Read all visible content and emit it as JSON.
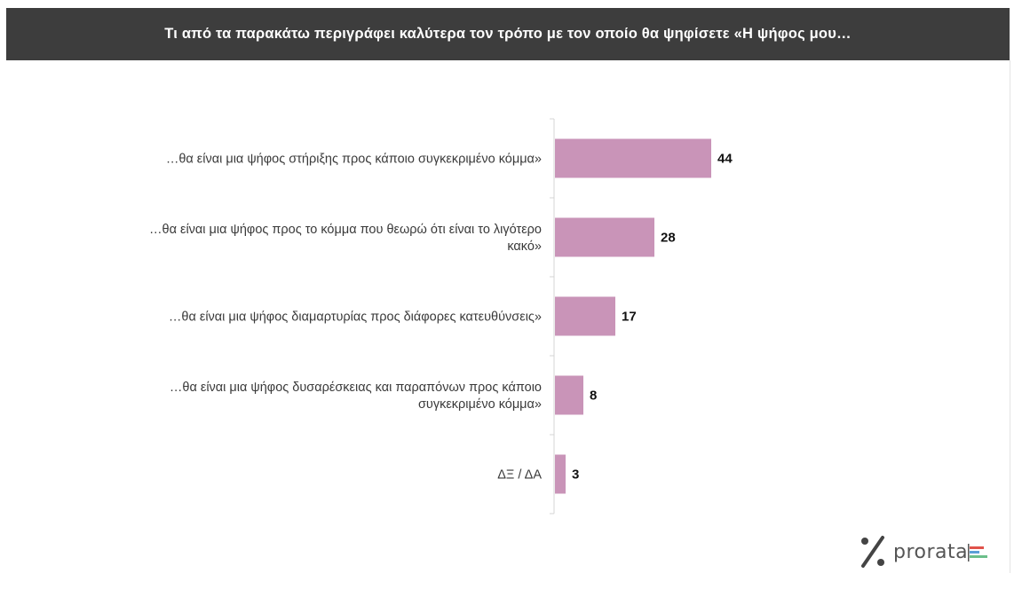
{
  "header": {
    "title": "Τι από τα παρακάτω περιγράφει καλύτερα τον τρόπο με τον οποίο θα ψηφίσετε «Η ψήφος μου…"
  },
  "logo": {
    "symbol": "%",
    "text": "prorata",
    "icon": "stacked-bars-icon",
    "bar_colors": [
      "#e0524b",
      "#5a9fd6",
      "#6bbf8a"
    ]
  },
  "chart_data": {
    "type": "bar",
    "orientation": "horizontal",
    "categories": [
      [
        "…θα είναι μια ψήφος στήριξης προς κάποιο συγκεκριμένο κόμμα»"
      ],
      [
        "…θα είναι μια ψήφος προς το κόμμα που θεωρώ ότι είναι το λιγότερο",
        "κακό»"
      ],
      [
        "…θα είναι μια ψήφος διαμαρτυρίας προς διάφορες κατευθύνσεις»"
      ],
      [
        "…θα είναι μια ψήφος δυσαρέσκειας και παραπόνων προς κάποιο",
        "συγκεκριμένο κόμμα»"
      ],
      [
        "ΔΞ / ΔΑ"
      ]
    ],
    "values": [
      44,
      28,
      17,
      8,
      3
    ],
    "bar_color": "#c994b8",
    "xlim": [
      0,
      100
    ],
    "grid": false,
    "legend": "none"
  }
}
